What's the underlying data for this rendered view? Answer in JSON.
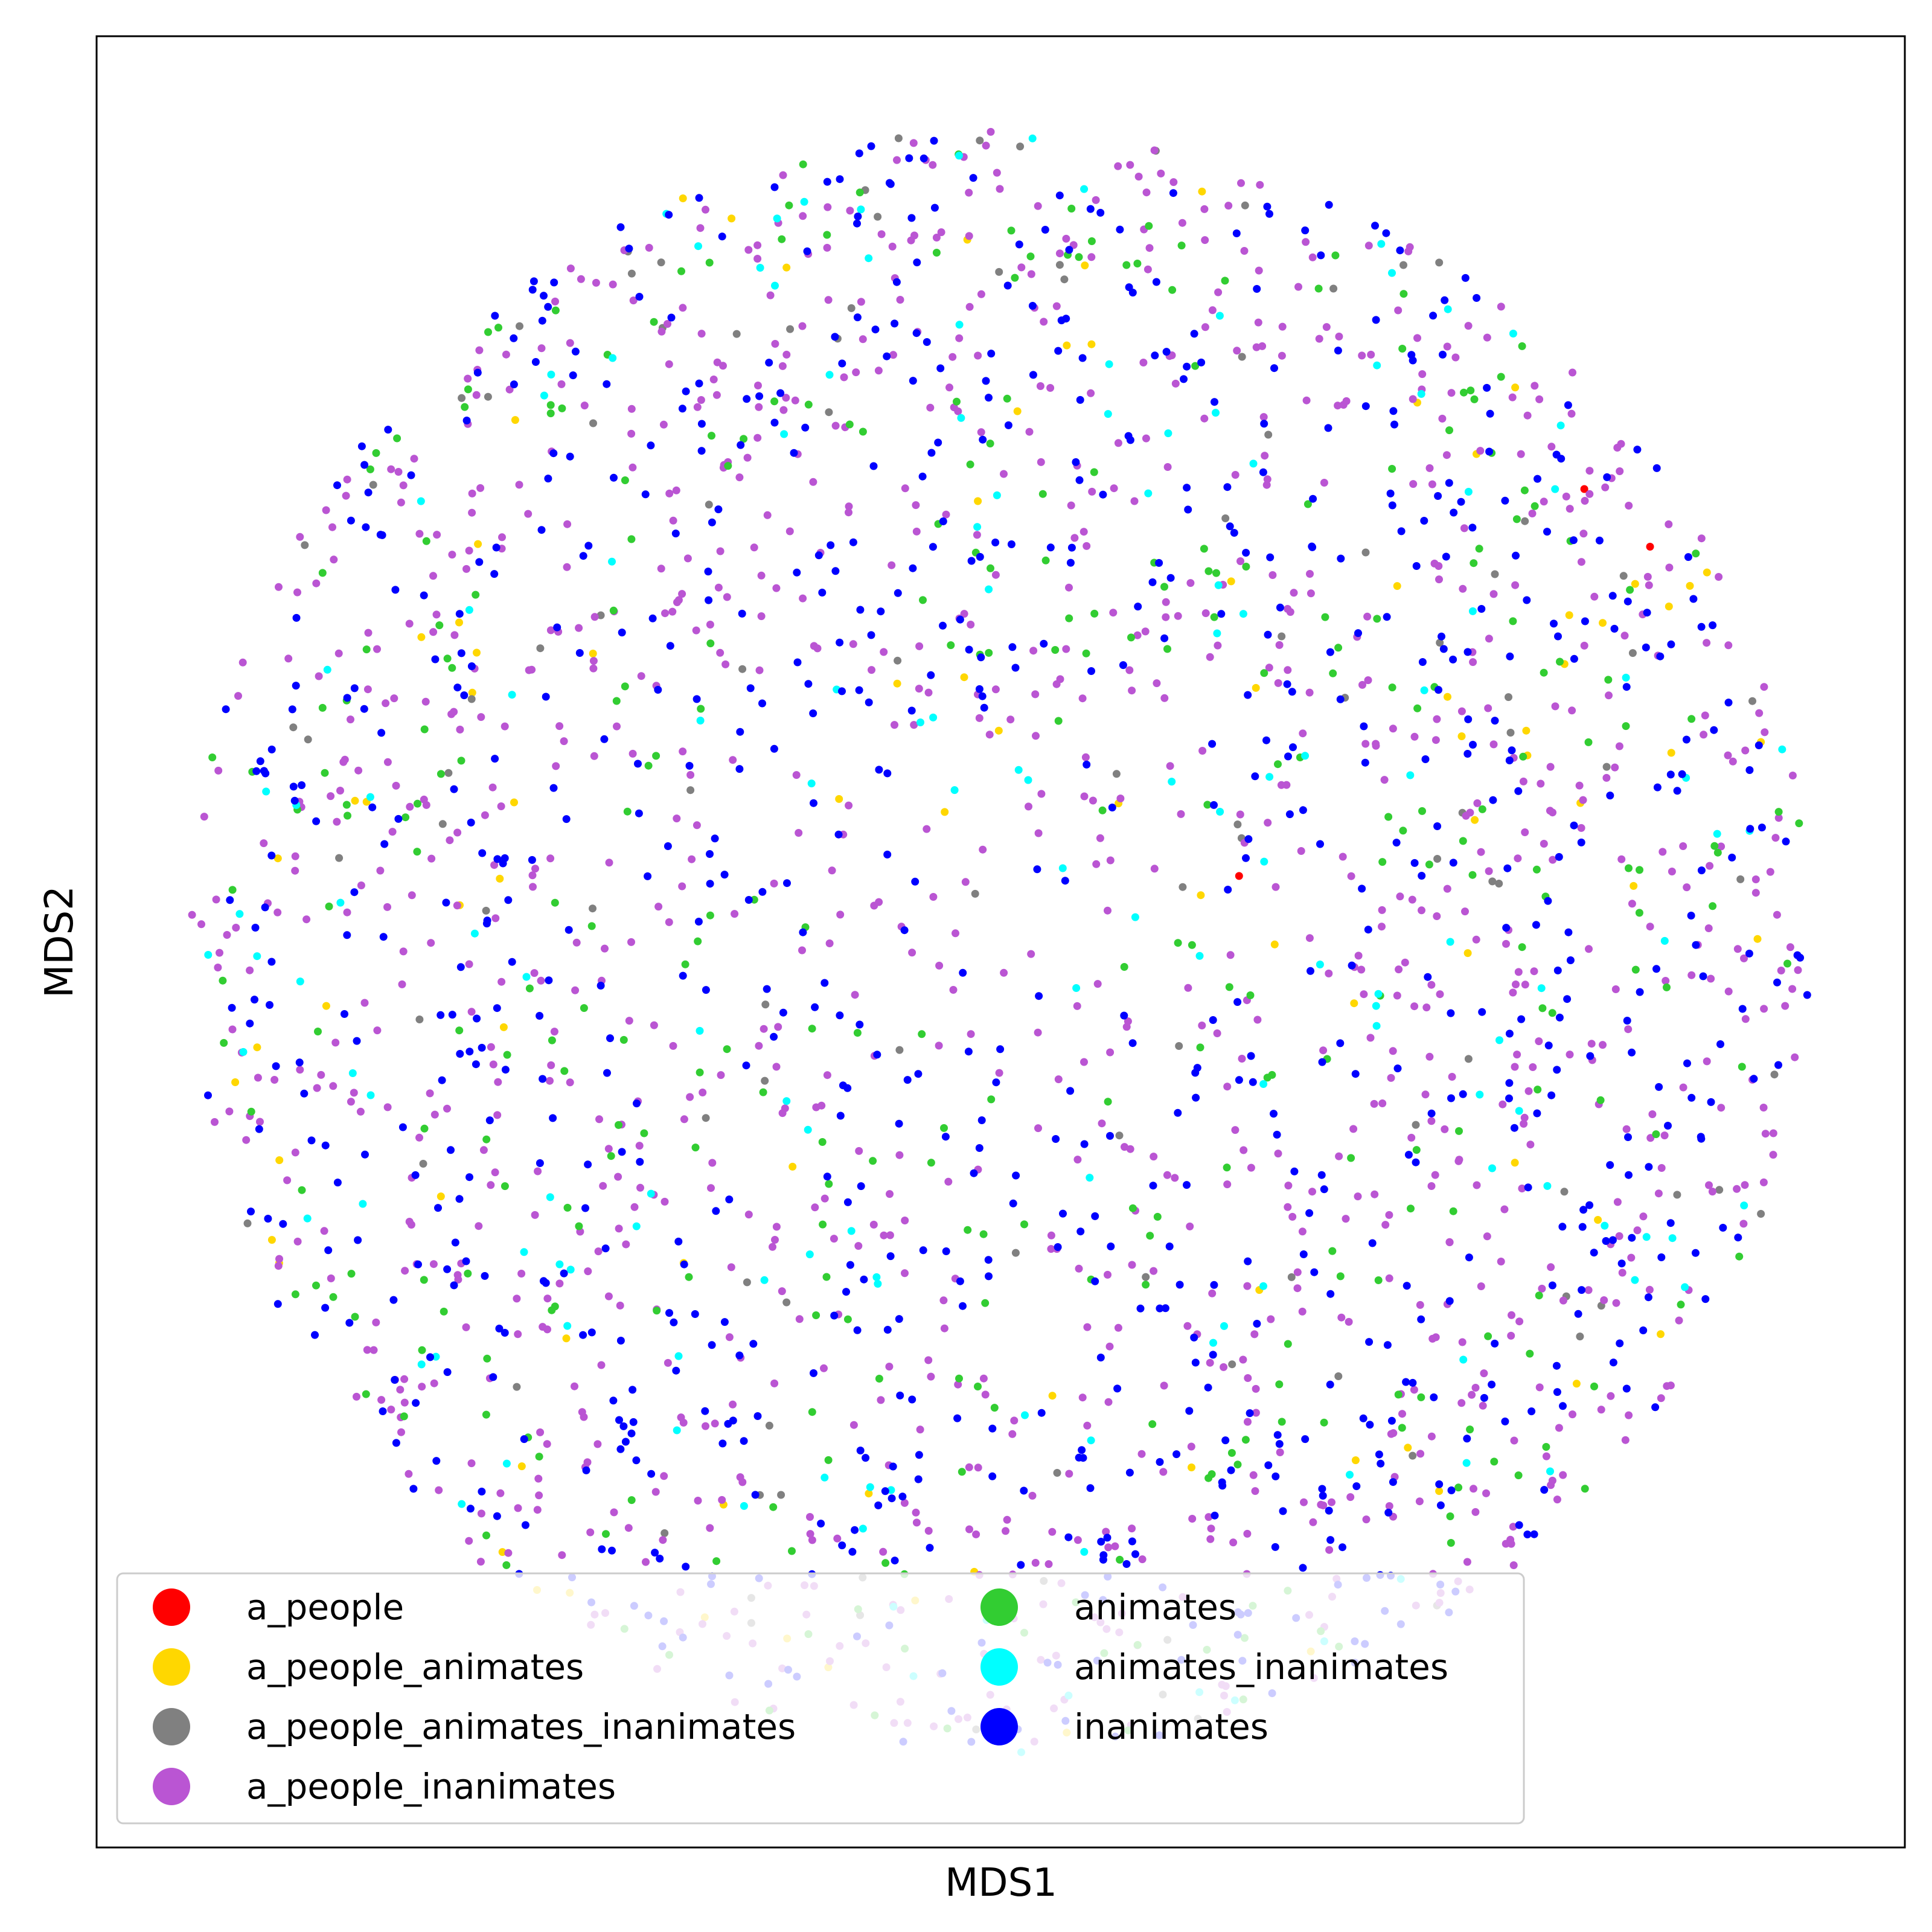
{
  "chart_data": {
    "type": "scatter",
    "title": "",
    "xlabel": "MDS1",
    "ylabel": "MDS2",
    "xlim": [
      -1.1,
      1.1
    ],
    "ylim": [
      -1.1,
      1.1
    ],
    "grid": false,
    "ticks_visible": false,
    "legend": {
      "placement": "lower-left",
      "columns": 2
    },
    "series": [
      {
        "name": "a_people",
        "color": "#ff0000",
        "count": 3,
        "seed": 11
      },
      {
        "name": "a_people_animates",
        "color": "#ffd700",
        "count": 90,
        "seed": 23
      },
      {
        "name": "a_people_animates_inanimates",
        "color": "#808080",
        "count": 110,
        "seed": 37
      },
      {
        "name": "a_people_inanimates",
        "color": "#ba55d3",
        "count": 1150,
        "seed": 41
      },
      {
        "name": "animates",
        "color": "#32cd32",
        "count": 330,
        "seed": 53
      },
      {
        "name": "animates_inanimates",
        "color": "#00ffff",
        "count": 150,
        "seed": 67
      },
      {
        "name": "inanimates",
        "color": "#0000ff",
        "count": 860,
        "seed": 79
      }
    ],
    "fixed_points": {
      "a_people": [
        [
          0.71,
          0.55
        ],
        [
          0.79,
          0.48
        ],
        [
          0.29,
          0.08
        ]
      ]
    }
  }
}
